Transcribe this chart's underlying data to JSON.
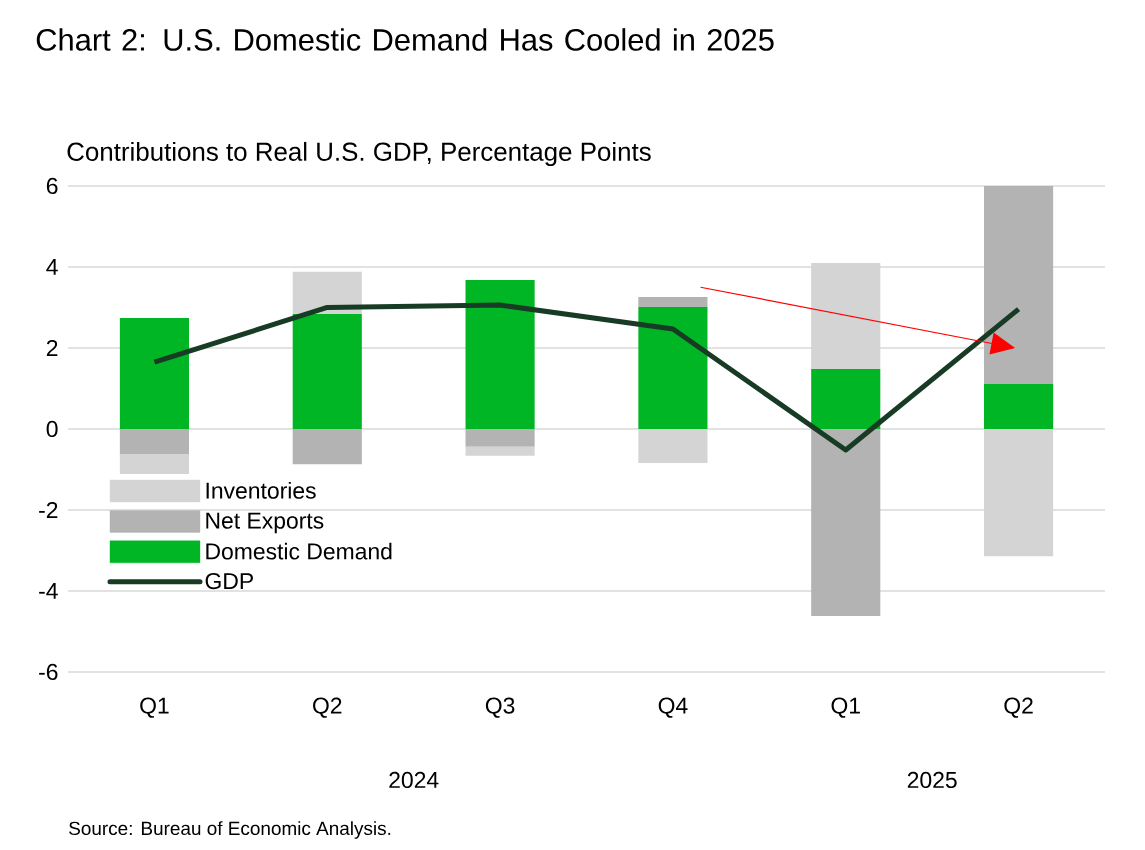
{
  "chart_data": {
    "type": "bar",
    "stacked": true,
    "title": "Chart 2: U.S. Domestic Demand Has Cooled in 2025",
    "subtitle": "Contributions to Real U.S. GDP, Percentage Points",
    "categories": [
      "Q1",
      "Q2",
      "Q3",
      "Q4",
      "Q1",
      "Q2"
    ],
    "series": [
      {
        "name": "Domestic Demand",
        "color": "#00b624",
        "values": [
          2.74,
          2.84,
          3.68,
          3.01,
          1.48,
          1.11
        ]
      },
      {
        "name": "Net Exports",
        "color": "#b3b3b3",
        "values": [
          -0.62,
          -0.87,
          -0.44,
          0.25,
          -4.62,
          4.89
        ]
      },
      {
        "name": "Inventories",
        "color": "#d4d4d4",
        "values": [
          -0.49,
          1.04,
          -0.22,
          -0.84,
          2.62,
          -3.14
        ]
      },
      {
        "name": "GDP",
        "type": "line",
        "color": "#173b24",
        "values": [
          1.65,
          3.0,
          3.06,
          2.47,
          -0.52,
          2.96
        ]
      }
    ],
    "ylim": [
      -6,
      6
    ],
    "yticks": [
      -6,
      -4,
      -2,
      0,
      2,
      4,
      6
    ],
    "grid": "y",
    "legend": "bottom left",
    "annotations": [
      "2024",
      "2025",
      "Source: Bureau of Economic Analysis."
    ]
  }
}
